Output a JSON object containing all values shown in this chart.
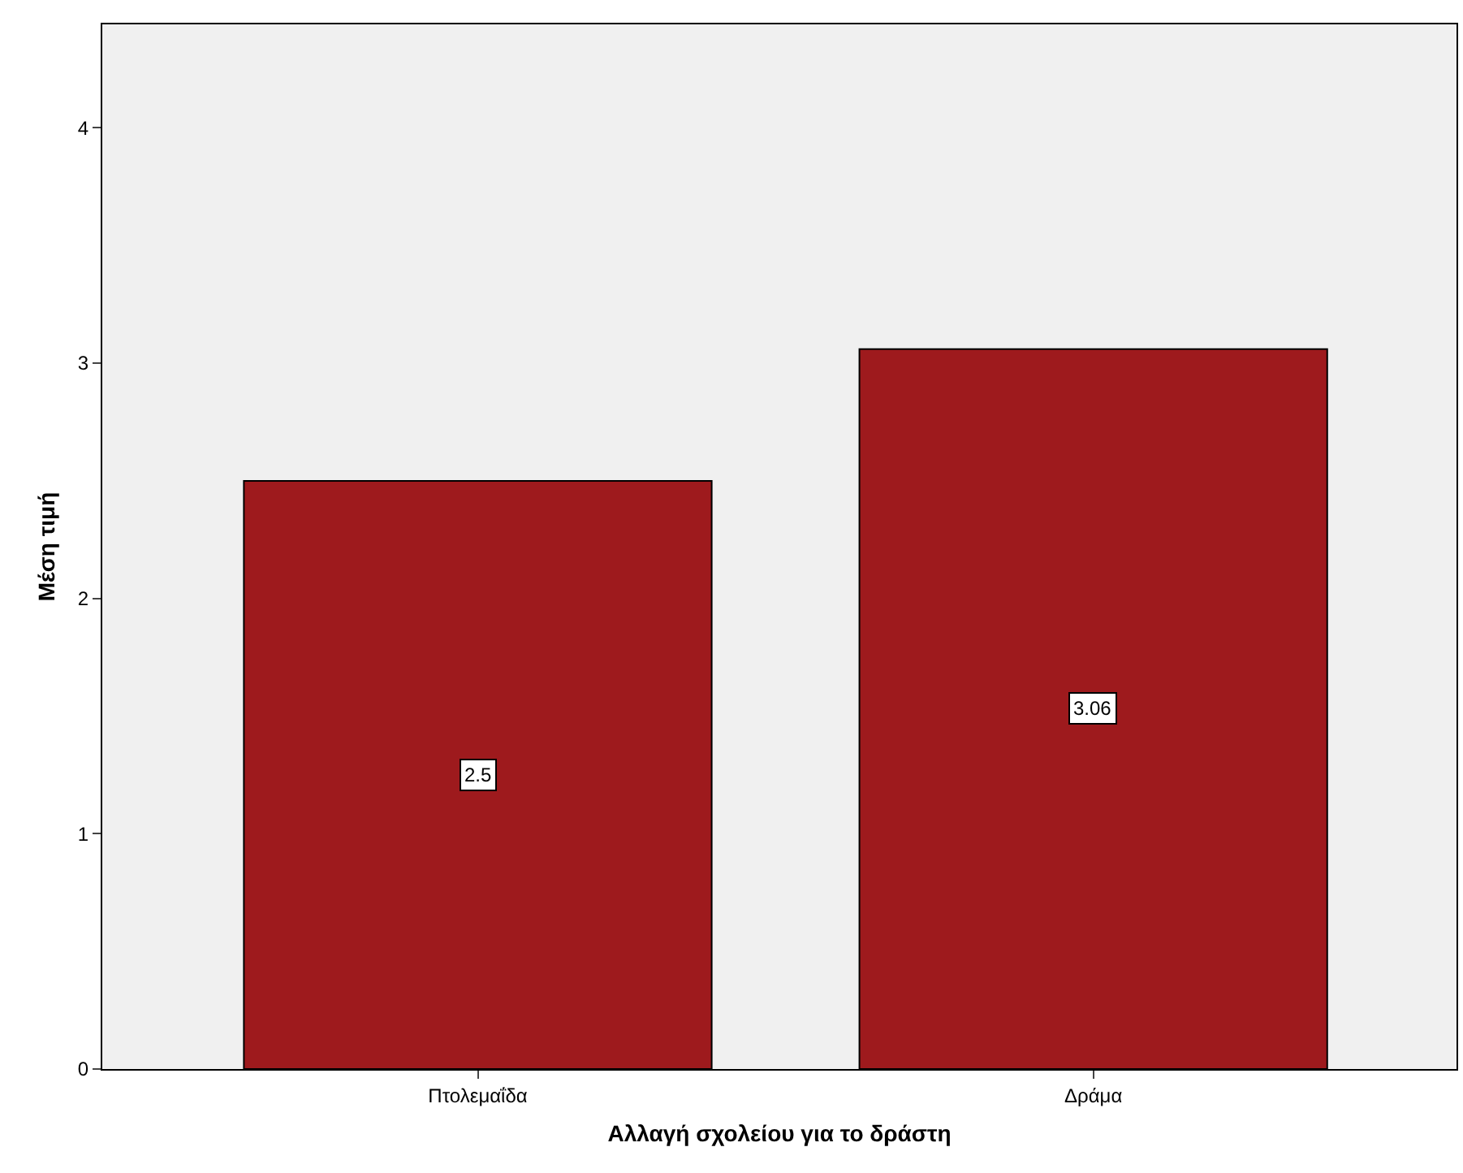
{
  "chart_data": {
    "type": "bar",
    "xlabel": "Αλλαγή σχολείου για το δράστη",
    "ylabel": "Μέση τιμή",
    "categories": [
      "Πτολεμαΐδα",
      "Δράμα"
    ],
    "values": [
      2.5,
      3.06
    ],
    "color": "#9e1a1d",
    "ylim": [
      0,
      4.44
    ],
    "yticks": [
      0,
      1,
      2,
      3,
      4
    ],
    "grid": false,
    "legend": false,
    "data_labels": true
  }
}
